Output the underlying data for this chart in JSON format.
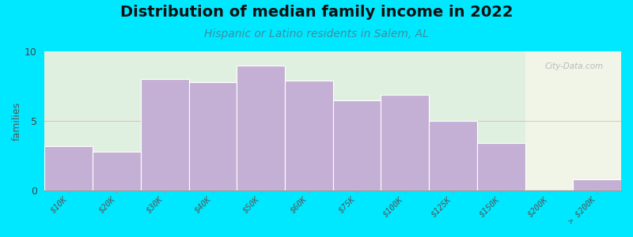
{
  "title": "Distribution of median family income in 2022",
  "subtitle": "Hispanic or Latino residents in Salem, AL",
  "ylabel": "families",
  "categories": [
    "$10K",
    "$20K",
    "$30K",
    "$40K",
    "$50K",
    "$60K",
    "$75K",
    "$100K",
    "$125K",
    "$150K",
    "$200K",
    "> $200K"
  ],
  "values": [
    3.2,
    2.8,
    8.0,
    7.8,
    9.0,
    7.9,
    6.5,
    6.9,
    5.0,
    3.4,
    0.0,
    0.8
  ],
  "bar_color": "#c5b0d5",
  "bar_edge_color": "#ffffff",
  "ylim": [
    0,
    10
  ],
  "yticks": [
    0,
    5,
    10
  ],
  "background_outer": "#00e8ff",
  "plot_bg_color_left": "#e0f0e0",
  "plot_bg_color_right": "#f0f5e8",
  "title_fontsize": 14,
  "subtitle_fontsize": 10,
  "subtitle_color": "#3a8fa0",
  "watermark": "City-Data.com",
  "watermark_color": "#b0b0b0",
  "split_bar_index": 10,
  "ylabel_fontsize": 9,
  "tick_label_fontsize": 7.5
}
